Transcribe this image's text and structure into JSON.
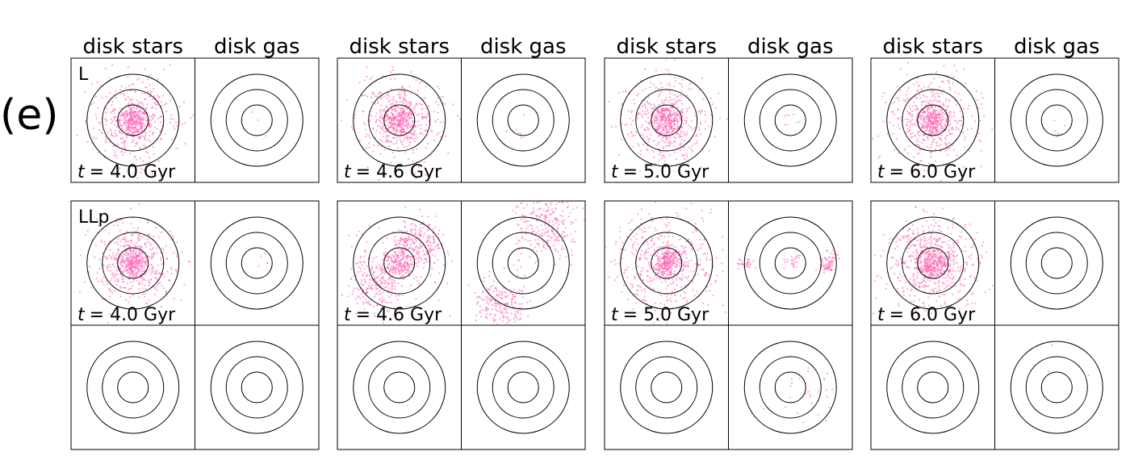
{
  "figure_label": "(e)",
  "rows": [
    "L",
    "LLp"
  ],
  "time_symbol": "t",
  "column_groups": [
    {
      "columns": [
        "disk stars",
        "disk gas"
      ],
      "time": "= 4.0 Gyr"
    },
    {
      "columns": [
        "disk stars",
        "disk gas"
      ],
      "time": "= 4.6 Gyr"
    },
    {
      "columns": [
        "disk stars",
        "disk gas"
      ],
      "time": "= 5.0 Gyr"
    },
    {
      "columns": [
        "disk stars",
        "disk gas"
      ],
      "time": "= 6.0 Gyr"
    }
  ]
}
